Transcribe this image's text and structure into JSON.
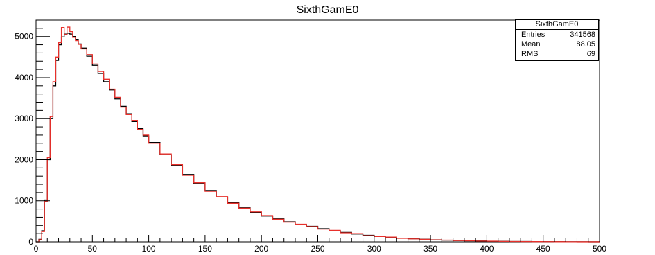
{
  "chart_data": {
    "type": "histogram",
    "title": "SixthGamE0",
    "xlabel": "",
    "ylabel": "",
    "xlim": [
      0,
      500
    ],
    "ylim": [
      0,
      5400
    ],
    "bin_width": 2.5,
    "x_ticks": [
      0,
      50,
      100,
      150,
      200,
      250,
      300,
      350,
      400,
      450,
      500
    ],
    "y_ticks": [
      0,
      1000,
      2000,
      3000,
      4000,
      5000
    ],
    "grid": false,
    "series": [
      {
        "color": "#000000",
        "points": [
          [
            0,
            0
          ],
          [
            2.5,
            60
          ],
          [
            5,
            270
          ],
          [
            7.5,
            1020
          ],
          [
            10,
            2000
          ],
          [
            12.5,
            3000
          ],
          [
            15,
            3800
          ],
          [
            17.5,
            4420
          ],
          [
            20,
            4800
          ],
          [
            22.5,
            4990
          ],
          [
            25,
            5060
          ],
          [
            27.5,
            5080
          ],
          [
            30,
            5060
          ],
          [
            32.5,
            5000
          ],
          [
            35,
            4920
          ],
          [
            37.5,
            4820
          ],
          [
            40,
            4720
          ],
          [
            45,
            4520
          ],
          [
            50,
            4300
          ],
          [
            55,
            4100
          ],
          [
            60,
            3900
          ],
          [
            65,
            3700
          ],
          [
            70,
            3480
          ],
          [
            75,
            3300
          ],
          [
            80,
            3120
          ],
          [
            85,
            2930
          ],
          [
            90,
            2760
          ],
          [
            95,
            2580
          ],
          [
            100,
            2420
          ],
          [
            110,
            2120
          ],
          [
            120,
            1860
          ],
          [
            130,
            1640
          ],
          [
            140,
            1420
          ],
          [
            150,
            1250
          ],
          [
            160,
            1090
          ],
          [
            170,
            950
          ],
          [
            180,
            830
          ],
          [
            190,
            720
          ],
          [
            200,
            630
          ],
          [
            210,
            560
          ],
          [
            220,
            490
          ],
          [
            230,
            420
          ],
          [
            240,
            380
          ],
          [
            250,
            320
          ],
          [
            260,
            270
          ],
          [
            270,
            230
          ],
          [
            280,
            190
          ],
          [
            290,
            160
          ],
          [
            300,
            135
          ],
          [
            310,
            110
          ],
          [
            320,
            90
          ],
          [
            330,
            75
          ],
          [
            340,
            62
          ],
          [
            350,
            50
          ],
          [
            360,
            40
          ],
          [
            370,
            32
          ],
          [
            380,
            26
          ],
          [
            390,
            20
          ],
          [
            400,
            15
          ],
          [
            410,
            12
          ],
          [
            420,
            9
          ],
          [
            430,
            7
          ],
          [
            440,
            5
          ],
          [
            450,
            4
          ],
          [
            460,
            3
          ],
          [
            470,
            2
          ],
          [
            480,
            2
          ],
          [
            490,
            1
          ]
        ]
      },
      {
        "color": "#e8302b",
        "points": [
          [
            0,
            0
          ],
          [
            2.5,
            50
          ],
          [
            5,
            250
          ],
          [
            7.5,
            990
          ],
          [
            10,
            2050
          ],
          [
            12.5,
            3050
          ],
          [
            15,
            3900
          ],
          [
            17.5,
            4500
          ],
          [
            20,
            4850
          ],
          [
            22.5,
            5220
          ],
          [
            25,
            5050
          ],
          [
            27.5,
            5230
          ],
          [
            30,
            5120
          ],
          [
            32.5,
            4980
          ],
          [
            35,
            4900
          ],
          [
            37.5,
            4810
          ],
          [
            40,
            4700
          ],
          [
            45,
            4560
          ],
          [
            50,
            4330
          ],
          [
            55,
            4150
          ],
          [
            60,
            3960
          ],
          [
            65,
            3720
          ],
          [
            70,
            3520
          ],
          [
            75,
            3280
          ],
          [
            80,
            3100
          ],
          [
            85,
            2960
          ],
          [
            90,
            2740
          ],
          [
            95,
            2600
          ],
          [
            100,
            2400
          ],
          [
            110,
            2140
          ],
          [
            120,
            1880
          ],
          [
            130,
            1620
          ],
          [
            140,
            1440
          ],
          [
            150,
            1230
          ],
          [
            160,
            1100
          ],
          [
            170,
            940
          ],
          [
            180,
            820
          ],
          [
            190,
            730
          ],
          [
            200,
            640
          ],
          [
            210,
            550
          ],
          [
            220,
            480
          ],
          [
            230,
            430
          ],
          [
            240,
            370
          ],
          [
            250,
            310
          ],
          [
            260,
            280
          ],
          [
            270,
            220
          ],
          [
            280,
            200
          ],
          [
            290,
            150
          ],
          [
            300,
            130
          ],
          [
            310,
            115
          ],
          [
            320,
            85
          ],
          [
            330,
            72
          ],
          [
            340,
            60
          ],
          [
            350,
            48
          ],
          [
            360,
            42
          ],
          [
            370,
            30
          ],
          [
            380,
            25
          ],
          [
            390,
            19
          ],
          [
            400,
            16
          ],
          [
            410,
            11
          ],
          [
            420,
            9
          ],
          [
            430,
            6
          ],
          [
            440,
            5
          ],
          [
            450,
            4
          ],
          [
            460,
            3
          ],
          [
            470,
            2
          ],
          [
            480,
            1
          ],
          [
            490,
            1
          ]
        ]
      }
    ],
    "stats_box": {
      "name": "SixthGamE0",
      "entries_label": "Entries",
      "entries": "341568",
      "mean_label": "Mean",
      "mean": "88.05",
      "rms_label": "RMS",
      "rms": "69"
    }
  }
}
